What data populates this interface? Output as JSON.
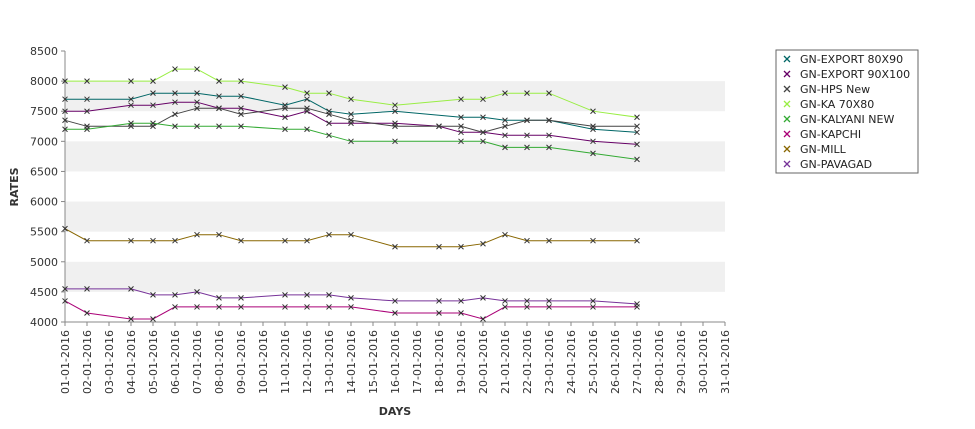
{
  "chart_data": {
    "type": "line",
    "xlabel": "DAYS",
    "ylabel": "RATES",
    "ylim": [
      4000,
      8500
    ],
    "yticks": [
      4000,
      4500,
      5000,
      5500,
      6000,
      6500,
      7000,
      7500,
      8000,
      8500
    ],
    "grid": "alternating horizontal bands",
    "legend_position": "right",
    "categories": [
      "01-01-2016",
      "02-01-2016",
      "03-01-2016",
      "04-01-2016",
      "05-01-2016",
      "06-01-2016",
      "07-01-2016",
      "08-01-2016",
      "09-01-2016",
      "10-01-2016",
      "11-01-2016",
      "12-01-2016",
      "13-01-2016",
      "14-01-2016",
      "15-01-2016",
      "16-01-2016",
      "17-01-2016",
      "18-01-2016",
      "19-01-2016",
      "20-01-2016",
      "21-01-2016",
      "22-01-2016",
      "23-01-2016",
      "24-01-2016",
      "25-01-2016",
      "26-01-2016",
      "27-01-2016",
      "28-01-2016",
      "29-01-2016",
      "30-01-2016",
      "31-01-2016"
    ],
    "series": [
      {
        "name": "GN-EXPORT 80X90",
        "color": "#006666",
        "values": [
          7700,
          7700,
          null,
          7700,
          7800,
          7800,
          7800,
          7750,
          7750,
          null,
          7600,
          7700,
          7500,
          7450,
          null,
          7500,
          null,
          null,
          7400,
          7400,
          7350,
          7350,
          7350,
          null,
          7200,
          null,
          7150,
          null,
          null,
          null,
          null
        ]
      },
      {
        "name": "GN-EXPORT 90X100",
        "color": "#660066",
        "values": [
          7500,
          7500,
          null,
          7600,
          7600,
          7650,
          7650,
          7550,
          7550,
          null,
          7400,
          7500,
          7300,
          7300,
          null,
          7300,
          null,
          7250,
          7150,
          7150,
          7100,
          7100,
          7100,
          null,
          7000,
          null,
          6950,
          null,
          null,
          null,
          null
        ]
      },
      {
        "name": "GN-HPS New",
        "color": "#444444",
        "values": [
          7350,
          7250,
          null,
          7250,
          7250,
          7450,
          7550,
          7550,
          7450,
          null,
          7550,
          7550,
          7450,
          7350,
          null,
          7250,
          null,
          7250,
          7250,
          7150,
          7250,
          7350,
          7350,
          null,
          7250,
          null,
          7250,
          null,
          null,
          null,
          null
        ]
      },
      {
        "name": "GN-KA 70X80",
        "color": "#99ee44",
        "values": [
          8000,
          8000,
          null,
          8000,
          8000,
          8200,
          8200,
          8000,
          8000,
          null,
          7900,
          7800,
          7800,
          7700,
          null,
          7600,
          null,
          null,
          7700,
          7700,
          7800,
          7800,
          7800,
          null,
          7500,
          null,
          7400,
          null,
          null,
          null,
          null
        ]
      },
      {
        "name": "GN-KALYANI NEW",
        "color": "#33aa33",
        "values": [
          7200,
          7200,
          null,
          7300,
          7300,
          7250,
          7250,
          7250,
          7250,
          null,
          7200,
          7200,
          7100,
          7000,
          null,
          7000,
          null,
          null,
          7000,
          7000,
          6900,
          6900,
          6900,
          null,
          6800,
          null,
          6700,
          null,
          null,
          null,
          null
        ]
      },
      {
        "name": "GN-KAPCHI",
        "color": "#aa0077",
        "values": [
          4350,
          4150,
          null,
          4050,
          4050,
          4250,
          4250,
          4250,
          4250,
          null,
          4250,
          4250,
          4250,
          4250,
          null,
          4150,
          null,
          4150,
          4150,
          4050,
          4250,
          4250,
          4250,
          null,
          4250,
          null,
          4250,
          null,
          null,
          null,
          null
        ]
      },
      {
        "name": "GN-MILL",
        "color": "#886600",
        "values": [
          5550,
          5350,
          null,
          5350,
          5350,
          5350,
          5450,
          5450,
          5350,
          null,
          5350,
          5350,
          5450,
          5450,
          null,
          5250,
          null,
          5250,
          5250,
          5300,
          5450,
          5350,
          5350,
          null,
          5350,
          null,
          5350,
          null,
          null,
          null,
          null
        ]
      },
      {
        "name": "GN-PAVAGAD",
        "color": "#773399",
        "values": [
          4550,
          4550,
          null,
          4550,
          4450,
          4450,
          4500,
          4400,
          4400,
          null,
          4450,
          4450,
          4450,
          4400,
          null,
          4350,
          null,
          4350,
          4350,
          4400,
          4350,
          4350,
          4350,
          null,
          4350,
          null,
          4300,
          null,
          null,
          null,
          null
        ]
      }
    ]
  }
}
